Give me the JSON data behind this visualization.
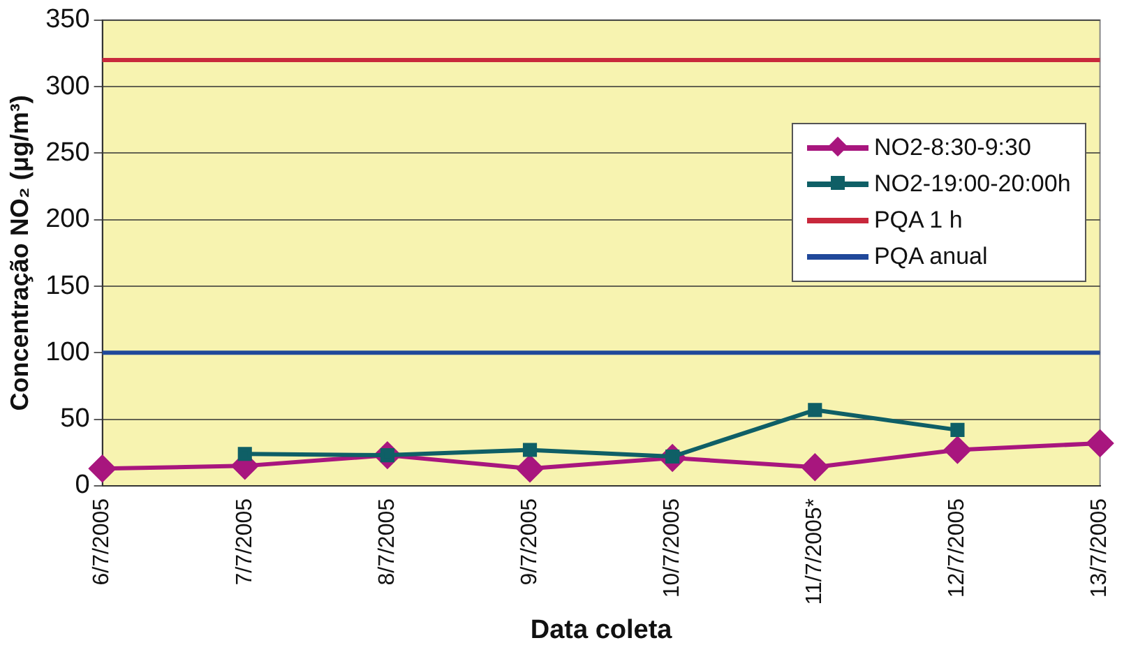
{
  "chart_data": {
    "type": "line",
    "xlabel": "Data coleta",
    "ylabel": "Concentração NO₂ (μg/m³)",
    "categories": [
      "6/7/2005",
      "7/7/2005",
      "8/7/2005",
      "9/7/2005",
      "10/7/2005",
      "11/7/2005*",
      "12/7/2005",
      "13/7/2005"
    ],
    "series": [
      {
        "name": "NO2-8:30-9:30",
        "color": "#a8167e",
        "marker": "diamond",
        "values": [
          13,
          15,
          23,
          13,
          21,
          14,
          27,
          32
        ]
      },
      {
        "name": "NO2-19:00-20:00h",
        "color": "#0f5f66",
        "marker": "square",
        "values": [
          null,
          24,
          23,
          27,
          22,
          57,
          42,
          null
        ]
      },
      {
        "name": "PQA 1 h",
        "color": "#c8283c",
        "marker": "none",
        "values": [
          320,
          320,
          320,
          320,
          320,
          320,
          320,
          320
        ]
      },
      {
        "name": "PQA anual",
        "color": "#20489a",
        "marker": "none",
        "values": [
          100,
          100,
          100,
          100,
          100,
          100,
          100,
          100
        ]
      }
    ],
    "ylim": [
      0,
      350
    ],
    "yticks": [
      0,
      50,
      100,
      150,
      200,
      250,
      300,
      350
    ],
    "grid": "y",
    "legend": "right"
  }
}
